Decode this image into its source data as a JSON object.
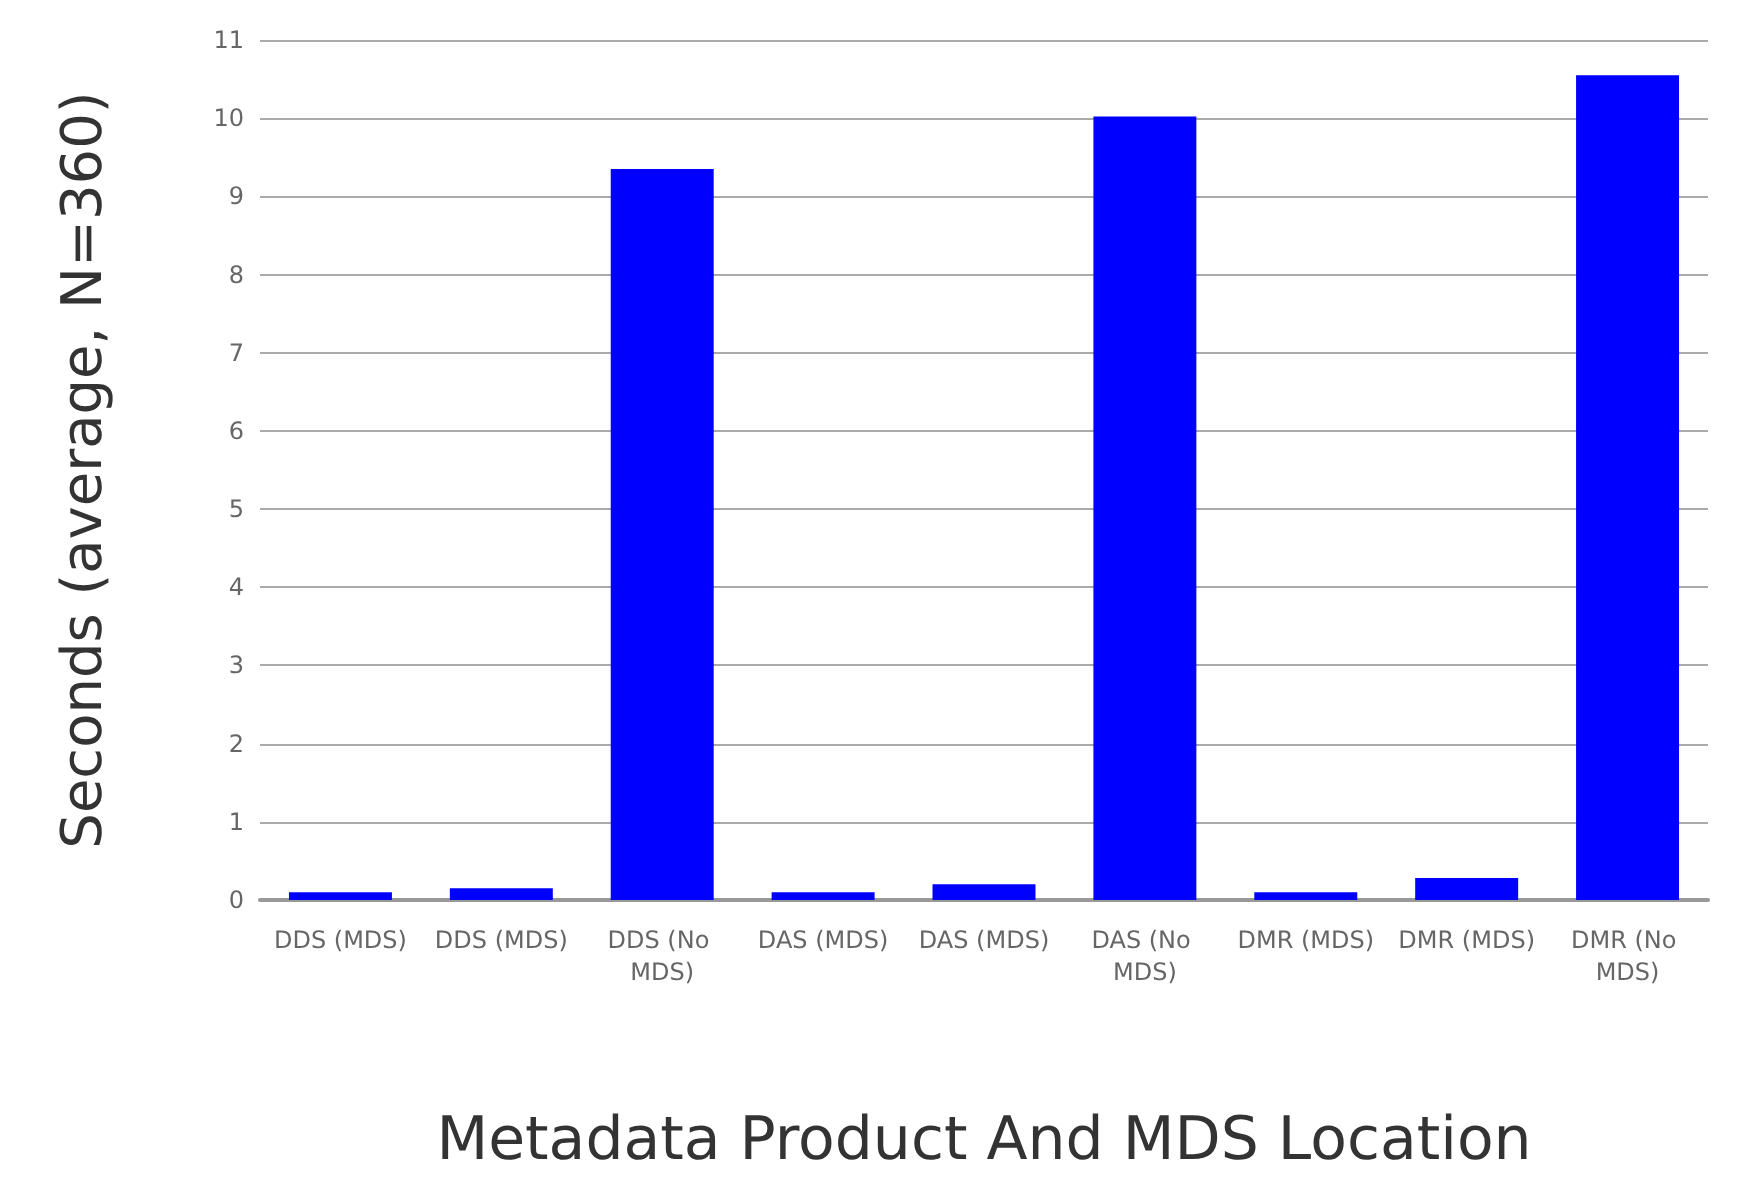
{
  "chart_data": {
    "type": "bar",
    "xlabel": "Metadata Product And MDS Location",
    "ylabel": "Seconds (average, N=360)",
    "categories": [
      "DDS (MDS)",
      "DDS (MDS)",
      "DDS (No MDS)",
      "DAS (MDS)",
      "DAS (MDS)",
      "DAS (No MDS)",
      "DMR (MDS)",
      "DMR (MDS)",
      "DMR (No MDS)"
    ],
    "values": [
      0.1,
      0.15,
      9.35,
      0.1,
      0.2,
      10.02,
      0.1,
      0.28,
      10.55
    ],
    "color": "#0000ff",
    "ylim": [
      0,
      11
    ],
    "yticks": [
      0,
      1,
      2,
      3,
      4,
      5,
      6,
      7,
      8,
      9,
      10,
      11
    ],
    "grid": "y"
  }
}
